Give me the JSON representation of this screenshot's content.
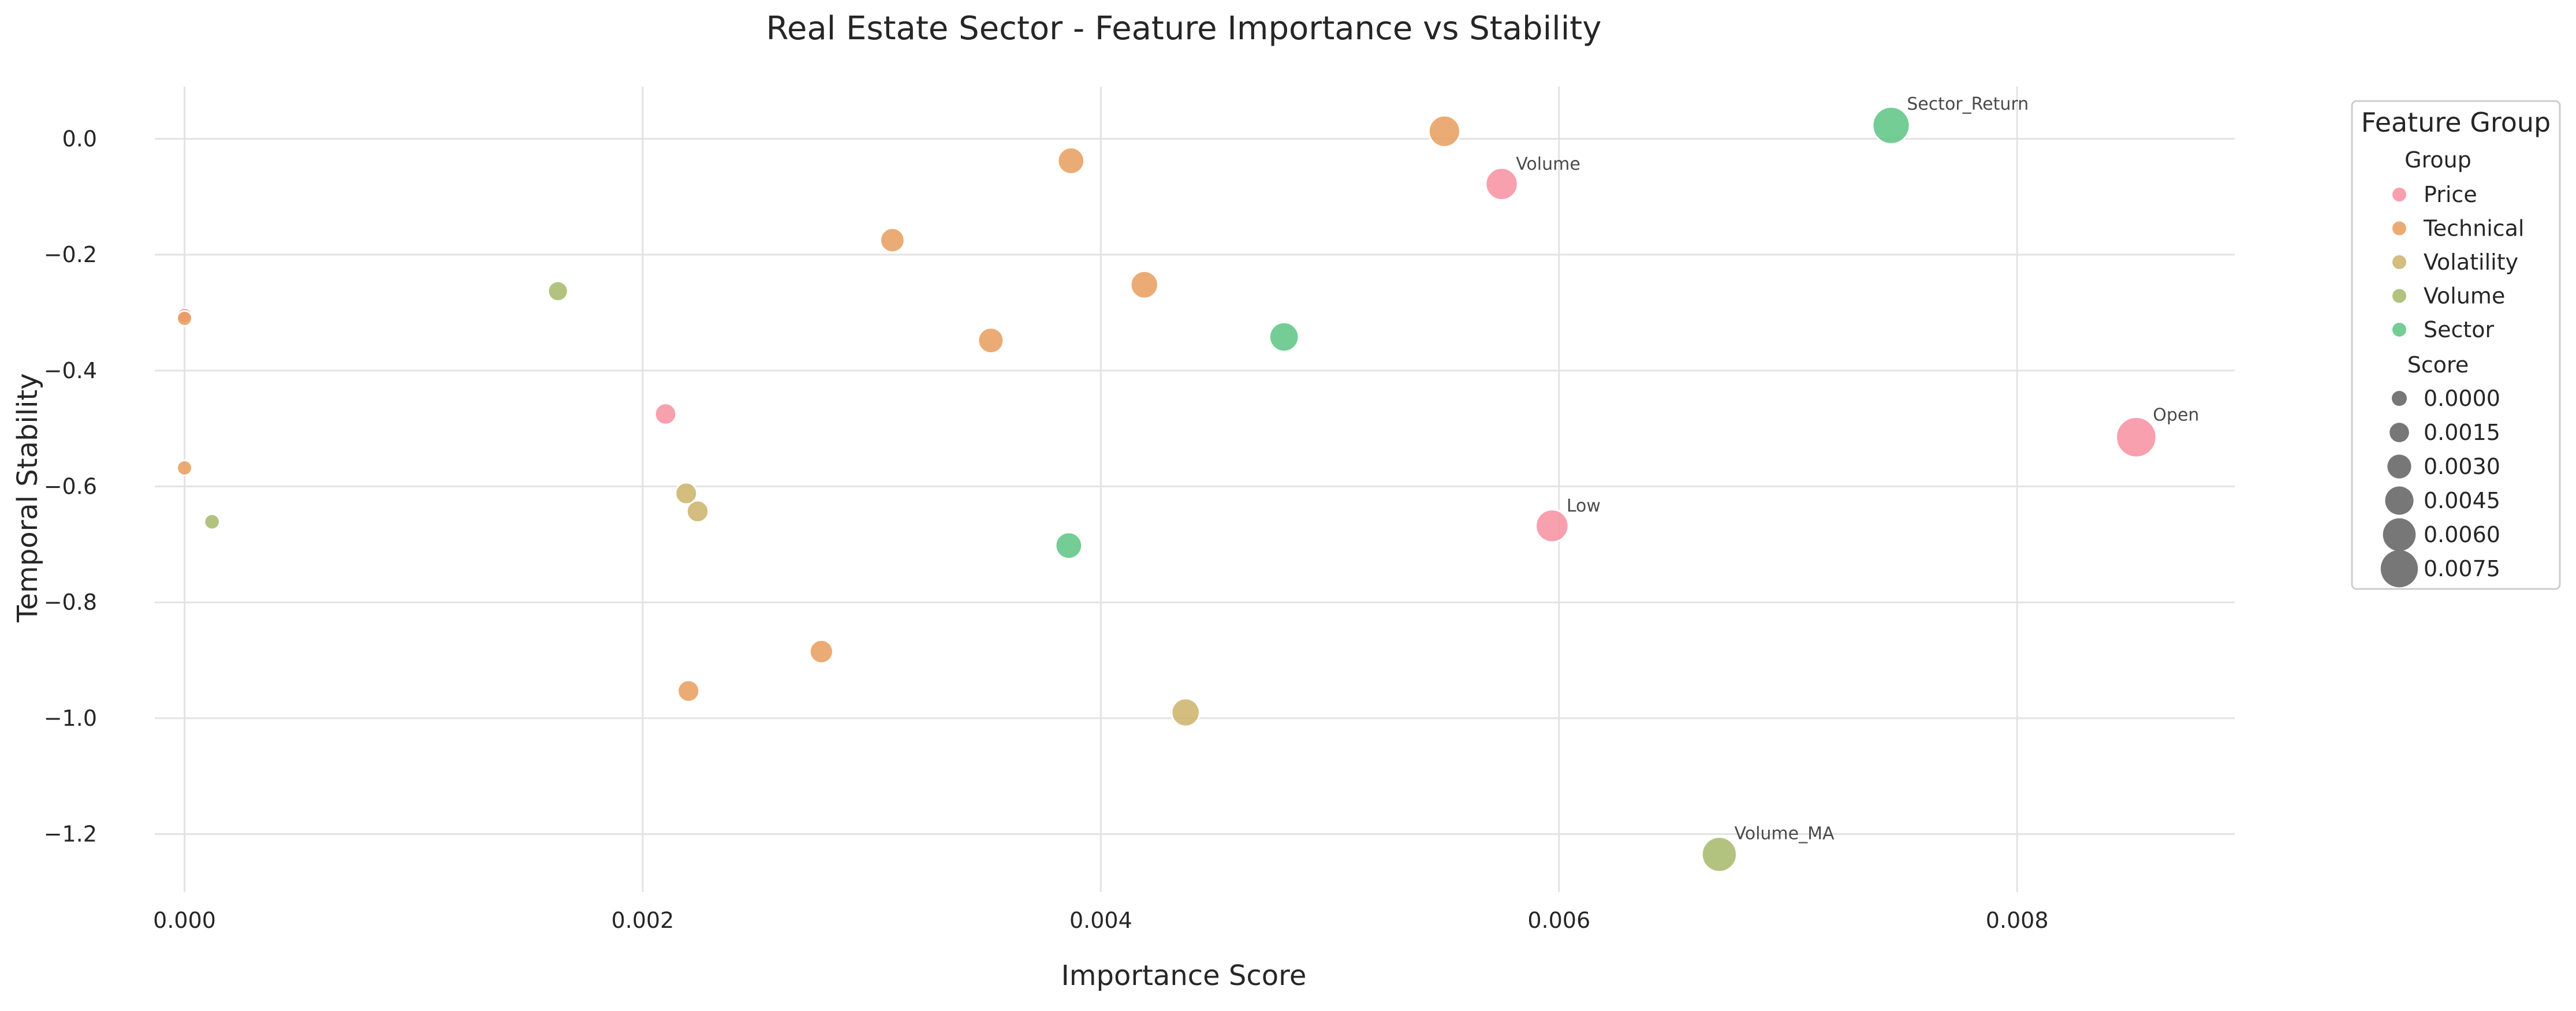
{
  "chart_data": {
    "type": "scatter",
    "title": "Real Estate Sector - Feature Importance vs Stability",
    "xlabel": "Importance Score",
    "ylabel": "Temporal Stability",
    "xlim": [
      -0.00013,
      0.00895
    ],
    "ylim": [
      -1.3,
      0.09
    ],
    "x_ticks": [
      0.0,
      0.002,
      0.004,
      0.006,
      0.008
    ],
    "x_tick_labels": [
      "0.000",
      "0.002",
      "0.004",
      "0.006",
      "0.008"
    ],
    "y_ticks": [
      0.0,
      -0.2,
      -0.4,
      -0.6,
      -0.8,
      -1.0,
      -1.2
    ],
    "y_tick_labels": [
      "0.0",
      "−0.2",
      "−0.4",
      "−0.6",
      "−0.8",
      "−1.0",
      "−1.2"
    ],
    "grid": true,
    "legend": {
      "title": "Feature Group",
      "placement": "outside-right",
      "group_heading": "Group",
      "groups": [
        {
          "name": "Price",
          "color": "#f78fa0"
        },
        {
          "name": "Technical",
          "color": "#e89c5c"
        },
        {
          "name": "Volatility",
          "color": "#cbb269"
        },
        {
          "name": "Volume",
          "color": "#a4b86a"
        },
        {
          "name": "Sector",
          "color": "#5cc482"
        }
      ],
      "size_heading": "Score",
      "size_entries": [
        {
          "label": "0.0000",
          "value": 0.0
        },
        {
          "label": "0.0015",
          "value": 0.0015
        },
        {
          "label": "0.0030",
          "value": 0.003
        },
        {
          "label": "0.0045",
          "value": 0.0045
        },
        {
          "label": "0.0060",
          "value": 0.006
        },
        {
          "label": "0.0075",
          "value": 0.0075
        }
      ]
    },
    "series": [
      {
        "name": "Price",
        "color": "#f78fa0",
        "points": [
          {
            "x": 0.00852,
            "y": -0.515,
            "label": "Open"
          },
          {
            "x": 0.00575,
            "y": -0.078,
            "label": "Volume"
          },
          {
            "x": 0.00597,
            "y": -0.668,
            "label": "Low"
          },
          {
            "x": 0.0021,
            "y": -0.475
          },
          {
            "x": 0.0,
            "y": -0.305
          }
        ]
      },
      {
        "name": "Technical",
        "color": "#e89c5c",
        "points": [
          {
            "x": 0.0055,
            "y": 0.013
          },
          {
            "x": 0.00387,
            "y": -0.038
          },
          {
            "x": 0.00309,
            "y": -0.175
          },
          {
            "x": 0.00419,
            "y": -0.252
          },
          {
            "x": 0.00352,
            "y": -0.348
          },
          {
            "x": 0.00278,
            "y": -0.885
          },
          {
            "x": 0.0022,
            "y": -0.953
          },
          {
            "x": 0.0,
            "y": -0.31
          },
          {
            "x": 0.0,
            "y": -0.568
          }
        ]
      },
      {
        "name": "Volatility",
        "color": "#cbb269",
        "points": [
          {
            "x": 0.00219,
            "y": -0.612
          },
          {
            "x": 0.00224,
            "y": -0.643
          },
          {
            "x": 0.00437,
            "y": -0.99
          }
        ]
      },
      {
        "name": "Volume",
        "color": "#a4b86a",
        "points": [
          {
            "x": 0.0067,
            "y": -1.235,
            "label": "Volume_MA"
          },
          {
            "x": 0.00163,
            "y": -0.263
          },
          {
            "x": 0.00012,
            "y": -0.661
          }
        ]
      },
      {
        "name": "Sector",
        "color": "#5cc482",
        "points": [
          {
            "x": 0.00745,
            "y": 0.023,
            "label": "Sector_Return"
          },
          {
            "x": 0.0048,
            "y": -0.342
          },
          {
            "x": 0.00386,
            "y": -0.702
          }
        ]
      }
    ]
  }
}
